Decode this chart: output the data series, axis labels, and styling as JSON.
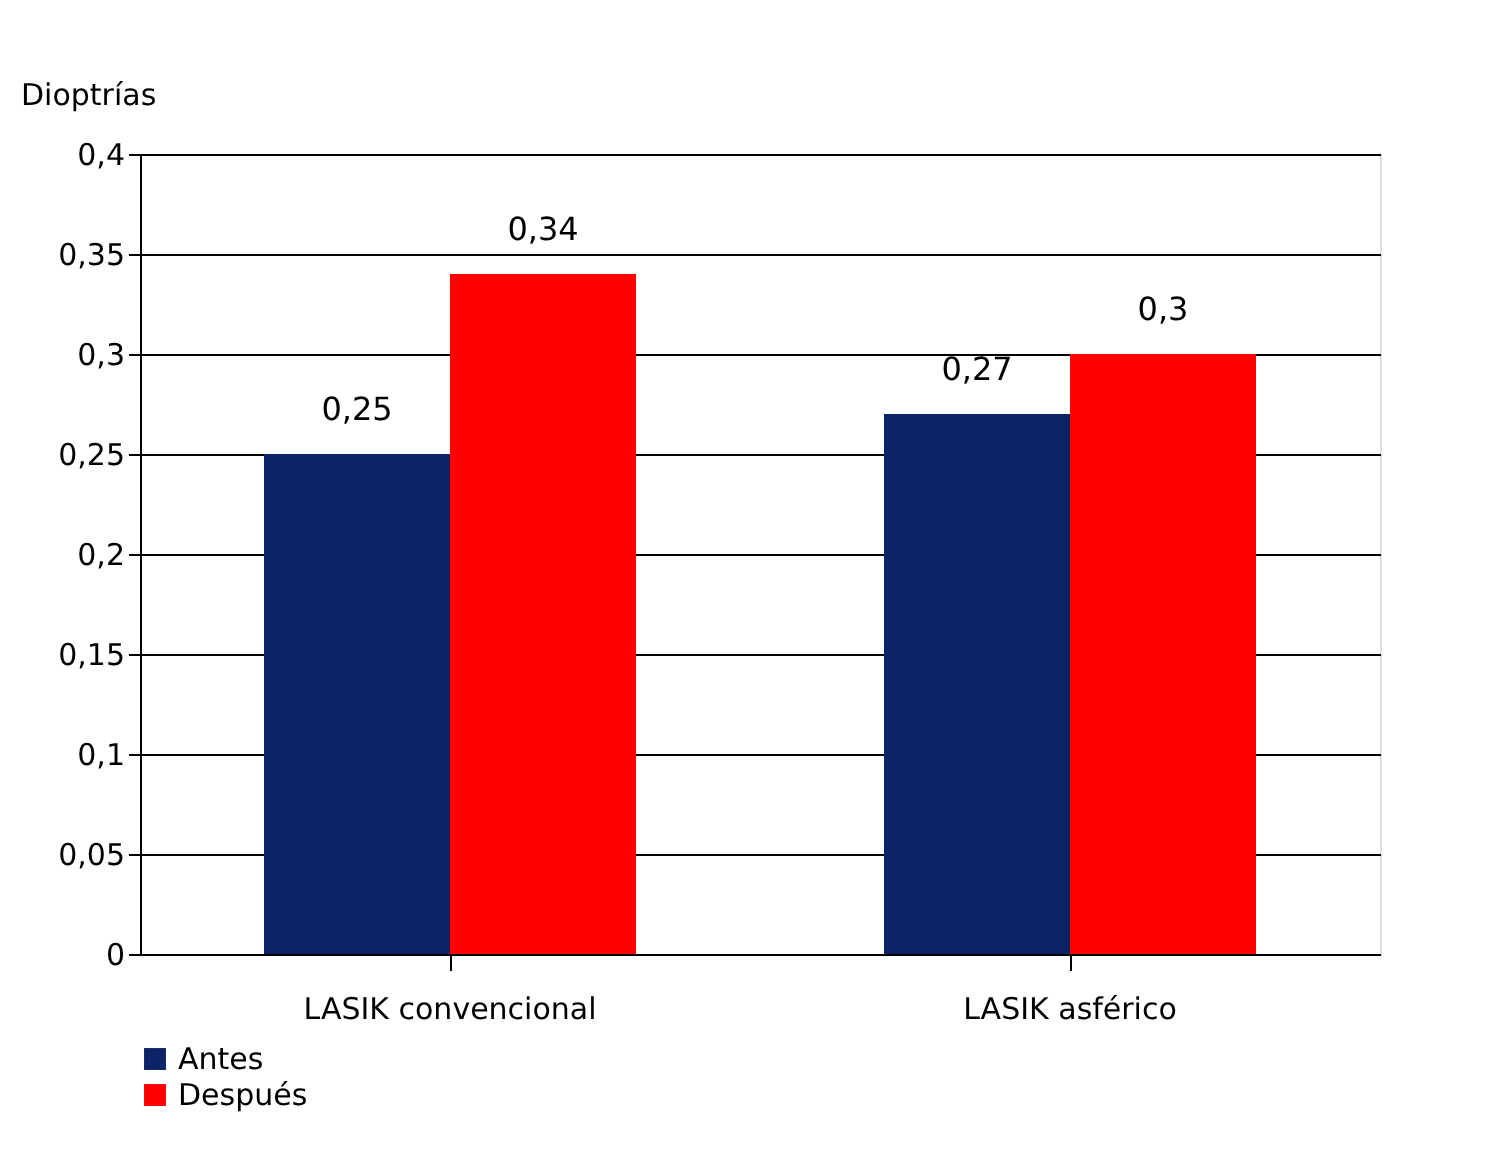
{
  "chart_data": {
    "type": "bar",
    "ylabel": "Dioptrías",
    "categories": [
      "LASIK convencional",
      "LASIK asférico"
    ],
    "series": [
      {
        "name": "Antes",
        "color": "#0c2466",
        "values": [
          0.25,
          0.27
        ],
        "value_labels": [
          "0,25",
          "0,27"
        ]
      },
      {
        "name": "Después",
        "color": "#ff0000",
        "values": [
          0.34,
          0.3
        ],
        "value_labels": [
          "0,34",
          "0,3"
        ]
      }
    ],
    "ylim": [
      0,
      0.4
    ],
    "yticks": [
      {
        "value": 0,
        "label": "0"
      },
      {
        "value": 0.05,
        "label": "0,05"
      },
      {
        "value": 0.1,
        "label": "0,1"
      },
      {
        "value": 0.15,
        "label": "0,15"
      },
      {
        "value": 0.2,
        "label": "0,2"
      },
      {
        "value": 0.25,
        "label": "0,25"
      },
      {
        "value": 0.3,
        "label": "0,3"
      },
      {
        "value": 0.35,
        "label": "0,35"
      },
      {
        "value": 0.4,
        "label": "0,4"
      }
    ],
    "grid": "y",
    "legend": "bottom left"
  }
}
